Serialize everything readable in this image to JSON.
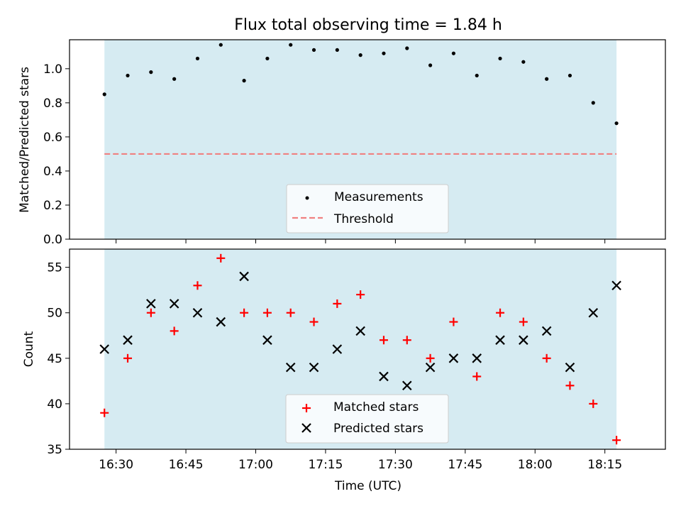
{
  "title": "Flux total observing time = 1.84 h",
  "colors": {
    "shade": "#add8e6",
    "measurement": "#000000",
    "threshold": "#f08080",
    "matched": "#ff0000",
    "predicted": "#000000"
  },
  "chart_data": [
    {
      "type": "scatter",
      "ylabel": "Matched/Predicted stars",
      "ylim": [
        0,
        1.17
      ],
      "yticks": [
        0.0,
        0.2,
        0.4,
        0.6,
        0.8,
        1.0
      ],
      "ytick_labels": [
        "0.0",
        "0.2",
        "0.4",
        "0.6",
        "0.8",
        "1.0"
      ],
      "shaded_range": [
        "16:27.5",
        "18:17.5"
      ],
      "legend_position": "lower center",
      "series": [
        {
          "name": "Measurements",
          "marker": "dot",
          "x": [
            "16:27.5",
            "16:32.5",
            "16:37.5",
            "16:42.5",
            "16:47.5",
            "16:52.5",
            "16:57.5",
            "17:02.5",
            "17:07.5",
            "17:12.5",
            "17:17.5",
            "17:22.5",
            "17:27.5",
            "17:32.5",
            "17:37.5",
            "17:42.5",
            "17:47.5",
            "17:52.5",
            "17:57.5",
            "18:02.5",
            "18:07.5",
            "18:12.5",
            "18:17.5"
          ],
          "y": [
            0.85,
            0.96,
            0.98,
            0.94,
            1.06,
            1.14,
            0.93,
            1.06,
            1.14,
            1.11,
            1.11,
            1.08,
            1.09,
            1.12,
            1.02,
            1.09,
            0.96,
            1.06,
            1.04,
            0.94,
            0.96,
            0.8,
            0.68
          ]
        },
        {
          "name": "Threshold",
          "style": "dashed",
          "x": [
            "16:27.5",
            "18:17.5"
          ],
          "y": [
            0.5,
            0.5
          ]
        }
      ]
    },
    {
      "type": "scatter",
      "xlabel": "Time (UTC)",
      "ylabel": "Count",
      "ylim": [
        35,
        57
      ],
      "yticks": [
        35,
        40,
        45,
        50,
        55
      ],
      "ytick_labels": [
        "35",
        "40",
        "45",
        "50",
        "55"
      ],
      "xticks": [
        "16:30",
        "16:45",
        "17:00",
        "17:15",
        "17:30",
        "17:45",
        "18:00",
        "18:15"
      ],
      "xlim": [
        "16:20",
        "18:28"
      ],
      "shaded_range": [
        "16:27.5",
        "18:17.5"
      ],
      "legend_position": "lower center",
      "x": [
        "16:27.5",
        "16:32.5",
        "16:37.5",
        "16:42.5",
        "16:47.5",
        "16:52.5",
        "16:57.5",
        "17:02.5",
        "17:07.5",
        "17:12.5",
        "17:17.5",
        "17:22.5",
        "17:27.5",
        "17:32.5",
        "17:37.5",
        "17:42.5",
        "17:47.5",
        "17:52.5",
        "17:57.5",
        "18:02.5",
        "18:07.5",
        "18:12.5",
        "18:17.5"
      ],
      "series": [
        {
          "name": "Matched stars",
          "marker": "plus",
          "values": [
            39,
            45,
            50,
            48,
            53,
            56,
            50,
            50,
            50,
            49,
            51,
            52,
            47,
            47,
            45,
            49,
            43,
            50,
            49,
            45,
            42,
            40,
            36
          ]
        },
        {
          "name": "Predicted stars",
          "marker": "x",
          "values": [
            46,
            47,
            51,
            51,
            50,
            49,
            54,
            47,
            44,
            44,
            46,
            48,
            43,
            42,
            44,
            45,
            45,
            47,
            47,
            48,
            44,
            50,
            53
          ]
        }
      ]
    }
  ]
}
